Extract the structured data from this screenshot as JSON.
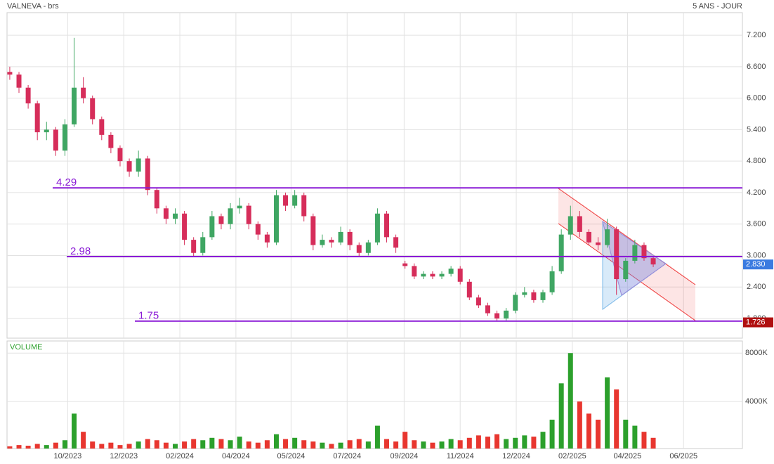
{
  "chart_data": {
    "type": "candlestick",
    "title": "VALNEVA - brs",
    "period": "5 ANS - JOUR",
    "volume_label": "VOLUME",
    "x": [
      0,
      1,
      2,
      3,
      4,
      5,
      6,
      7,
      8,
      9,
      10,
      11,
      12,
      13,
      14,
      15,
      16,
      17,
      18,
      19,
      20,
      21,
      22,
      23,
      24,
      25,
      26,
      27,
      28,
      29,
      30,
      31,
      32,
      33,
      34,
      35,
      36,
      37,
      38,
      39,
      40,
      41,
      42,
      43,
      44,
      45,
      46,
      47,
      48,
      49,
      50,
      51,
      52,
      53,
      54,
      55,
      56,
      57,
      58,
      59,
      60,
      61,
      62,
      63,
      64,
      65,
      66,
      67,
      68,
      69,
      70
    ],
    "open": [
      6.5,
      6.45,
      6.2,
      5.9,
      5.35,
      5.4,
      5.0,
      5.5,
      6.2,
      6.0,
      5.6,
      5.3,
      5.05,
      4.8,
      4.6,
      4.85,
      4.25,
      3.9,
      3.7,
      3.8,
      3.3,
      3.05,
      3.35,
      3.75,
      3.6,
      3.9,
      3.95,
      3.6,
      3.4,
      3.25,
      4.15,
      3.95,
      4.15,
      3.75,
      3.2,
      3.3,
      3.25,
      3.45,
      3.2,
      3.05,
      3.25,
      3.8,
      3.35,
      2.85,
      2.8,
      2.6,
      2.65,
      2.6,
      2.65,
      2.75,
      2.5,
      2.2,
      2.05,
      1.9,
      1.8,
      1.95,
      2.25,
      2.3,
      2.15,
      2.3,
      2.7,
      3.4,
      3.75,
      3.45,
      3.25,
      3.2,
      3.5,
      2.55,
      2.9,
      3.2,
      2.95
    ],
    "high": [
      6.6,
      6.5,
      6.25,
      5.95,
      5.55,
      5.45,
      5.6,
      7.15,
      6.4,
      6.05,
      5.65,
      5.35,
      5.1,
      4.85,
      5.0,
      4.9,
      4.3,
      3.95,
      3.9,
      3.85,
      3.35,
      3.45,
      3.85,
      3.8,
      4.0,
      4.1,
      4.0,
      3.65,
      3.45,
      4.25,
      4.2,
      4.25,
      4.2,
      3.8,
      3.4,
      3.35,
      3.55,
      3.5,
      3.25,
      3.3,
      3.9,
      3.85,
      3.4,
      2.9,
      2.85,
      2.7,
      2.7,
      2.7,
      2.8,
      2.8,
      2.55,
      2.25,
      2.1,
      1.95,
      2.0,
      2.3,
      2.4,
      2.35,
      2.35,
      2.8,
      3.5,
      3.95,
      3.85,
      3.5,
      3.35,
      3.7,
      3.55,
      2.95,
      3.3,
      3.25,
      2.98
    ],
    "low": [
      6.35,
      6.1,
      5.8,
      5.2,
      5.2,
      4.9,
      4.9,
      5.45,
      5.9,
      5.5,
      5.2,
      4.95,
      4.7,
      4.5,
      4.5,
      4.15,
      3.8,
      3.6,
      3.6,
      3.2,
      2.98,
      3.0,
      3.3,
      3.5,
      3.5,
      3.8,
      3.5,
      3.3,
      3.15,
      3.2,
      3.85,
      3.9,
      3.65,
      3.1,
      3.15,
      3.15,
      3.2,
      3.1,
      2.98,
      3.0,
      3.2,
      3.25,
      3.05,
      2.75,
      2.55,
      2.55,
      2.55,
      2.55,
      2.6,
      2.45,
      2.15,
      2.0,
      1.85,
      1.75,
      1.76,
      1.9,
      2.2,
      2.1,
      2.1,
      2.25,
      2.65,
      3.3,
      3.35,
      3.2,
      3.1,
      3.15,
      2.25,
      2.5,
      2.85,
      2.9,
      2.78
    ],
    "close": [
      6.45,
      6.2,
      5.9,
      5.35,
      5.4,
      5.0,
      5.5,
      6.2,
      6.0,
      5.6,
      5.3,
      5.05,
      4.8,
      4.6,
      4.85,
      4.25,
      3.9,
      3.7,
      3.8,
      3.3,
      3.05,
      3.35,
      3.75,
      3.6,
      3.9,
      3.95,
      3.6,
      3.4,
      3.25,
      4.15,
      3.95,
      4.15,
      3.75,
      3.2,
      3.3,
      3.25,
      3.45,
      3.2,
      3.05,
      3.25,
      3.8,
      3.35,
      3.15,
      2.8,
      2.6,
      2.65,
      2.6,
      2.65,
      2.75,
      2.5,
      2.2,
      2.05,
      1.9,
      1.8,
      1.95,
      2.25,
      2.3,
      2.15,
      2.3,
      2.7,
      3.4,
      3.75,
      3.45,
      3.25,
      3.2,
      3.5,
      2.55,
      2.9,
      3.2,
      2.95,
      2.83
    ],
    "volume": [
      300,
      400,
      350,
      500,
      400,
      600,
      800,
      3000,
      1500,
      700,
      500,
      600,
      400,
      500,
      700,
      900,
      800,
      600,
      500,
      700,
      900,
      800,
      1000,
      900,
      800,
      1100,
      700,
      600,
      800,
      1300,
      900,
      1000,
      800,
      700,
      600,
      500,
      600,
      800,
      900,
      700,
      2000,
      900,
      700,
      1500,
      800,
      700,
      600,
      700,
      900,
      800,
      1000,
      1200,
      1100,
      1300,
      900,
      1000,
      1200,
      1100,
      1500,
      2500,
      5500,
      8000,
      4000,
      3000,
      2500,
      6000,
      5000,
      2500,
      2000,
      1500,
      1000
    ],
    "up_color": "#3fa663",
    "down_color": "#d62d5a",
    "vol_up_color": "#2ca02c",
    "vol_down_color": "#e8362f",
    "xlim": [
      -0.3,
      79.7
    ],
    "xticks": [
      {
        "value": 6.3,
        "label": "10/2023"
      },
      {
        "value": 12.4,
        "label": "12/2023"
      },
      {
        "value": 18.5,
        "label": "02/2024"
      },
      {
        "value": 24.6,
        "label": "04/2024"
      },
      {
        "value": 30.6,
        "label": "05/2024"
      },
      {
        "value": 36.7,
        "label": "07/2024"
      },
      {
        "value": 42.9,
        "label": "09/2024"
      },
      {
        "value": 49.0,
        "label": "11/2024"
      },
      {
        "value": 55.1,
        "label": "12/2024"
      },
      {
        "value": 61.2,
        "label": "02/2025"
      },
      {
        "value": 67.2,
        "label": "04/2025"
      },
      {
        "value": 73.3,
        "label": "06/2025"
      }
    ],
    "ylim": [
      1.425,
      7.63
    ],
    "yticks": [
      {
        "value": 1.8,
        "label": "1.800"
      },
      {
        "value": 2.4,
        "label": "2.400"
      },
      {
        "value": 3.0,
        "label": "3.000"
      },
      {
        "value": 3.6,
        "label": "3.600"
      },
      {
        "value": 4.2,
        "label": "4.200"
      },
      {
        "value": 4.8,
        "label": "4.800"
      },
      {
        "value": 5.4,
        "label": "5.400"
      },
      {
        "value": 6.0,
        "label": "6.000"
      },
      {
        "value": 6.6,
        "label": "6.600"
      },
      {
        "value": 7.2,
        "label": "7.200"
      }
    ],
    "vol_ylim": [
      0,
      9000
    ],
    "vol_yticks": [
      {
        "value": 4000,
        "label": "4000K"
      },
      {
        "value": 8000,
        "label": "8000K"
      }
    ],
    "levels": [
      4.29,
      2.98,
      1.75
    ],
    "level_color": "#8a1ad6",
    "last_price": {
      "value": 2.83,
      "label": "2.830"
    },
    "low_marker": {
      "value": 1.726,
      "label": "1.726"
    },
    "grid": true
  }
}
